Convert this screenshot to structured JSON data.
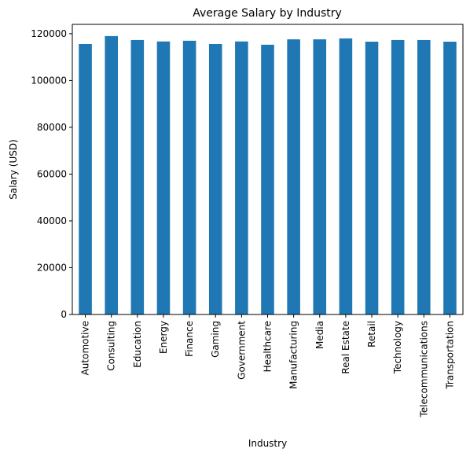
{
  "chart_data": {
    "type": "bar",
    "title": "Average Salary by Industry",
    "xlabel": "Industry",
    "ylabel": "Salary (USD)",
    "categories": [
      "Automotive",
      "Consulting",
      "Education",
      "Energy",
      "Finance",
      "Gaming",
      "Government",
      "Healthcare",
      "Manufacturing",
      "Media",
      "Real Estate",
      "Retail",
      "Technology",
      "Telecommunications",
      "Transportation"
    ],
    "values": [
      115600,
      119000,
      117300,
      116700,
      117000,
      115600,
      116700,
      115300,
      117600,
      117600,
      118000,
      116600,
      117300,
      117300,
      116600
    ],
    "ylim": [
      0,
      124000
    ],
    "yticks": [
      0,
      20000,
      40000,
      60000,
      80000,
      100000,
      120000
    ],
    "grid": false,
    "bar_color": "#1f77b4"
  }
}
